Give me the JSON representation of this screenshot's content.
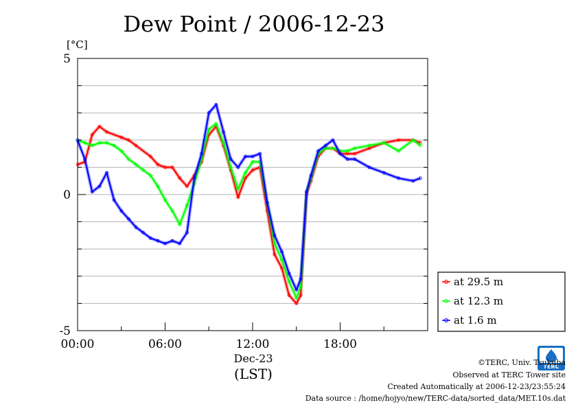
{
  "chart_data": {
    "type": "line",
    "title": "Dew Point / 2006-12-23",
    "ylabel": "[°C]",
    "xlabel_date": "Dec-23",
    "xlabel_tz": "(LST)",
    "ylim": [
      -5,
      5
    ],
    "xlim": [
      0,
      24
    ],
    "yticks": [
      {
        "value": 5,
        "label": "5"
      },
      {
        "value": 0,
        "label": "0"
      },
      {
        "value": -5,
        "label": "-5"
      }
    ],
    "xticks": [
      {
        "value": 0,
        "label": "00:00"
      },
      {
        "value": 6,
        "label": "06:00"
      },
      {
        "value": 12,
        "label": "12:00"
      },
      {
        "value": 18,
        "label": "18:00"
      }
    ],
    "grid": true,
    "legend_position": "right",
    "series": [
      {
        "name": "at 29.5 m",
        "color": "#ff0000",
        "points": [
          [
            0,
            1.1
          ],
          [
            0.5,
            1.2
          ],
          [
            1.0,
            2.2
          ],
          [
            1.5,
            2.5
          ],
          [
            2.0,
            2.3
          ],
          [
            3.0,
            2.1
          ],
          [
            3.5,
            2.0
          ],
          [
            4.0,
            1.8
          ],
          [
            5.0,
            1.4
          ],
          [
            5.5,
            1.1
          ],
          [
            6.0,
            1.0
          ],
          [
            6.5,
            1.0
          ],
          [
            7.0,
            0.6
          ],
          [
            7.5,
            0.3
          ],
          [
            8.0,
            0.7
          ],
          [
            8.5,
            1.2
          ],
          [
            9.0,
            2.2
          ],
          [
            9.5,
            2.5
          ],
          [
            10.0,
            1.8
          ],
          [
            10.5,
            0.9
          ],
          [
            11.0,
            -0.1
          ],
          [
            11.5,
            0.6
          ],
          [
            12.0,
            0.9
          ],
          [
            12.5,
            1.0
          ],
          [
            13.0,
            -0.6
          ],
          [
            13.5,
            -2.2
          ],
          [
            14.0,
            -2.7
          ],
          [
            14.5,
            -3.7
          ],
          [
            15.0,
            -4.0
          ],
          [
            15.3,
            -3.7
          ],
          [
            15.7,
            0.0
          ],
          [
            16.0,
            0.5
          ],
          [
            16.5,
            1.4
          ],
          [
            17.0,
            1.7
          ],
          [
            17.5,
            1.7
          ],
          [
            18.0,
            1.5
          ],
          [
            18.5,
            1.5
          ],
          [
            19.0,
            1.5
          ],
          [
            20.0,
            1.7
          ],
          [
            21.0,
            1.9
          ],
          [
            22.0,
            2.0
          ],
          [
            23.0,
            2.0
          ],
          [
            23.5,
            1.9
          ]
        ]
      },
      {
        "name": "at 12.3 m",
        "color": "#00ff00",
        "points": [
          [
            0,
            2.0
          ],
          [
            0.5,
            1.9
          ],
          [
            1.0,
            1.8
          ],
          [
            1.5,
            1.9
          ],
          [
            2.0,
            1.9
          ],
          [
            2.5,
            1.8
          ],
          [
            3.0,
            1.6
          ],
          [
            3.5,
            1.3
          ],
          [
            4.0,
            1.1
          ],
          [
            4.5,
            0.9
          ],
          [
            5.0,
            0.7
          ],
          [
            5.5,
            0.3
          ],
          [
            6.0,
            -0.2
          ],
          [
            6.5,
            -0.6
          ],
          [
            7.0,
            -1.1
          ],
          [
            7.5,
            -0.4
          ],
          [
            8.0,
            0.4
          ],
          [
            8.5,
            1.3
          ],
          [
            9.0,
            2.4
          ],
          [
            9.5,
            2.6
          ],
          [
            10.0,
            1.9
          ],
          [
            10.5,
            1.0
          ],
          [
            11.0,
            0.2
          ],
          [
            11.5,
            0.8
          ],
          [
            12.0,
            1.2
          ],
          [
            12.5,
            1.2
          ],
          [
            13.0,
            -0.3
          ],
          [
            13.5,
            -1.8
          ],
          [
            14.0,
            -2.4
          ],
          [
            14.5,
            -3.2
          ],
          [
            15.0,
            -3.8
          ],
          [
            15.3,
            -3.4
          ],
          [
            15.7,
            0.1
          ],
          [
            16.0,
            0.6
          ],
          [
            16.5,
            1.5
          ],
          [
            17.0,
            1.7
          ],
          [
            17.5,
            1.7
          ],
          [
            18.0,
            1.6
          ],
          [
            18.5,
            1.6
          ],
          [
            19.0,
            1.7
          ],
          [
            20.0,
            1.8
          ],
          [
            21.0,
            1.9
          ],
          [
            22.0,
            1.6
          ],
          [
            23.0,
            2.0
          ],
          [
            23.5,
            1.8
          ]
        ]
      },
      {
        "name": "at 1.6 m",
        "color": "#0000ff",
        "points": [
          [
            0,
            2.0
          ],
          [
            0.5,
            1.3
          ],
          [
            1.0,
            0.1
          ],
          [
            1.5,
            0.3
          ],
          [
            2.0,
            0.8
          ],
          [
            2.5,
            -0.2
          ],
          [
            3.0,
            -0.6
          ],
          [
            3.5,
            -0.9
          ],
          [
            4.0,
            -1.2
          ],
          [
            4.5,
            -1.4
          ],
          [
            5.0,
            -1.6
          ],
          [
            5.5,
            -1.7
          ],
          [
            6.0,
            -1.8
          ],
          [
            6.5,
            -1.7
          ],
          [
            7.0,
            -1.8
          ],
          [
            7.5,
            -1.4
          ],
          [
            8.0,
            0.6
          ],
          [
            8.5,
            1.5
          ],
          [
            9.0,
            3.0
          ],
          [
            9.5,
            3.3
          ],
          [
            10.0,
            2.3
          ],
          [
            10.5,
            1.3
          ],
          [
            11.0,
            1.0
          ],
          [
            11.5,
            1.4
          ],
          [
            12.0,
            1.4
          ],
          [
            12.5,
            1.5
          ],
          [
            13.0,
            -0.3
          ],
          [
            13.5,
            -1.5
          ],
          [
            14.0,
            -2.1
          ],
          [
            14.5,
            -2.9
          ],
          [
            15.0,
            -3.5
          ],
          [
            15.3,
            -3.1
          ],
          [
            15.7,
            0.1
          ],
          [
            16.0,
            0.7
          ],
          [
            16.5,
            1.6
          ],
          [
            17.0,
            1.8
          ],
          [
            17.5,
            2.0
          ],
          [
            18.0,
            1.5
          ],
          [
            18.5,
            1.3
          ],
          [
            19.0,
            1.3
          ],
          [
            20.0,
            1.0
          ],
          [
            21.0,
            0.8
          ],
          [
            22.0,
            0.6
          ],
          [
            23.0,
            0.5
          ],
          [
            23.5,
            0.6
          ]
        ]
      }
    ]
  },
  "credits": {
    "copyright": "©TERC, Univ. Tsukuba",
    "observed": "Observed at TERC Tower site",
    "created": "Created Automatically at 2006-12-23/23:55:24",
    "source": "Data source : /home/hojyo/new/TERC-data/sorted_data/MET.10s.dat"
  },
  "logo": {
    "text": "TERC",
    "color": "#1a6fc4"
  }
}
